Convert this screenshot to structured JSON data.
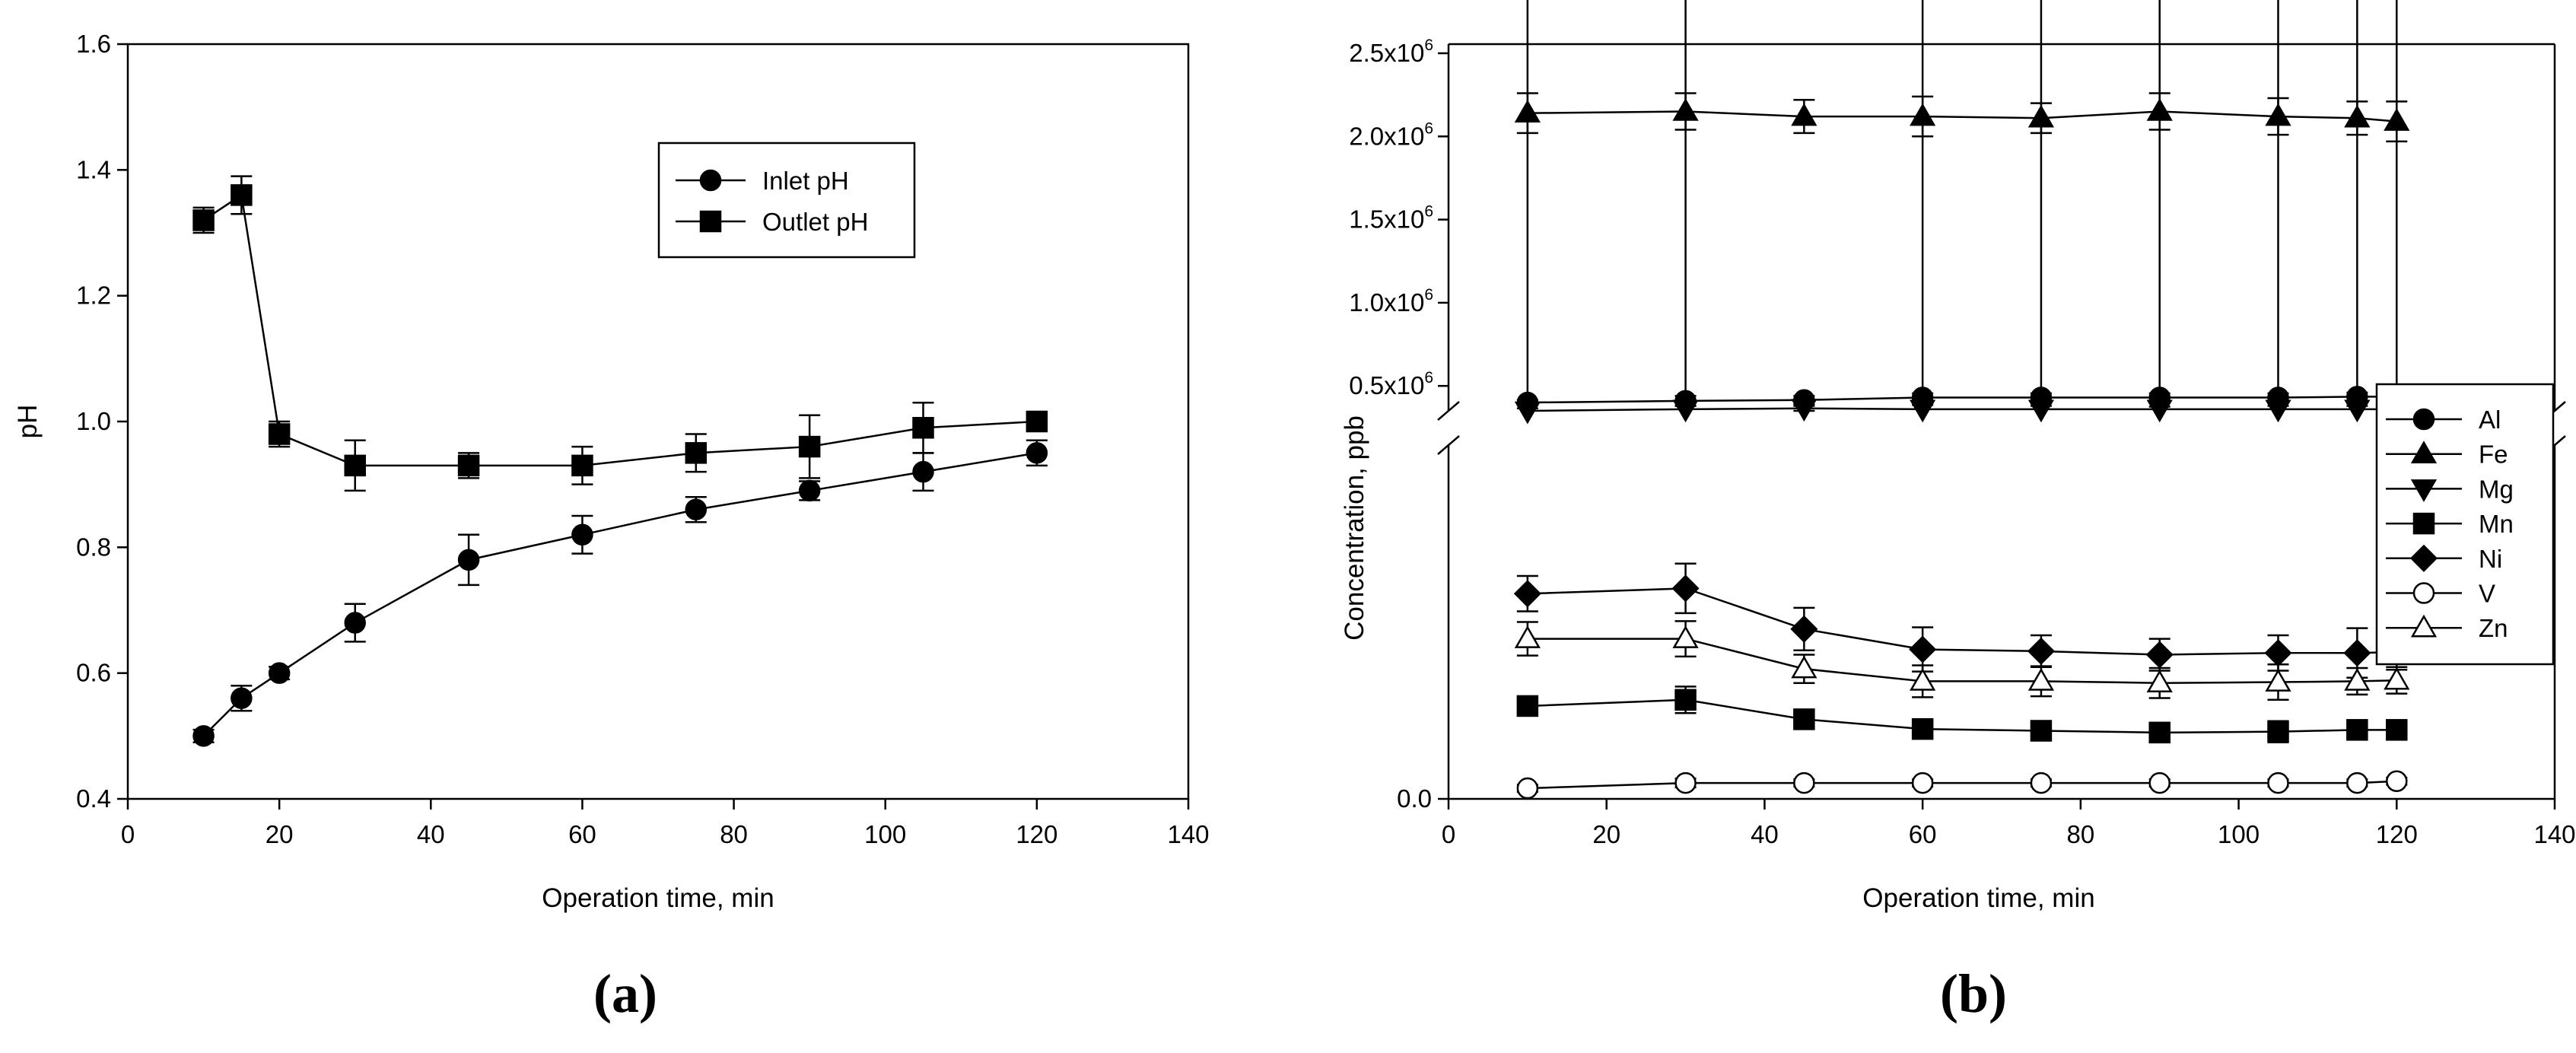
{
  "chart_data": [
    {
      "type": "line",
      "panel_label": "a",
      "title": "",
      "xlabel": "Operation time, min",
      "ylabel": "pH",
      "xlim": [
        0,
        140
      ],
      "ylim": [
        0.4,
        1.6
      ],
      "xticks": [
        "0",
        "20",
        "40",
        "60",
        "80",
        "100",
        "120",
        "140"
      ],
      "yticks": [
        "0.4",
        "0.6",
        "0.8",
        "1.0",
        "1.2",
        "1.4",
        "1.6"
      ],
      "grid": false,
      "legend_position": "top-right",
      "series": [
        {
          "name": "Inlet pH",
          "marker": "circle-filled",
          "x": [
            10,
            15,
            20,
            30,
            45,
            60,
            75,
            90,
            105,
            120
          ],
          "y": [
            0.5,
            0.56,
            0.6,
            0.68,
            0.78,
            0.82,
            0.86,
            0.89,
            0.92,
            0.95
          ],
          "err": [
            0.01,
            0.02,
            0.01,
            0.03,
            0.04,
            0.03,
            0.02,
            0.015,
            0.03,
            0.02
          ]
        },
        {
          "name": "Outlet pH",
          "marker": "square-filled",
          "x": [
            10,
            15,
            20,
            30,
            45,
            60,
            75,
            90,
            105,
            120
          ],
          "y": [
            1.32,
            1.36,
            0.98,
            0.93,
            0.93,
            0.93,
            0.95,
            0.96,
            0.99,
            1.0
          ],
          "err": [
            0.02,
            0.03,
            0.02,
            0.04,
            0.02,
            0.03,
            0.03,
            0.05,
            0.04,
            0.015
          ]
        }
      ]
    },
    {
      "type": "line",
      "panel_label": "b",
      "title": "",
      "xlabel": "Operation time, min",
      "ylabel": "Concentration, ppb",
      "xlim": [
        0,
        140
      ],
      "xticks": [
        "0",
        "20",
        "40",
        "60",
        "80",
        "100",
        "120",
        "140"
      ],
      "axis_break": true,
      "y_upper_range": [
        350000,
        2500000
      ],
      "y_lower_range": [
        0,
        40000
      ],
      "yticks_upper": [
        {
          "value": 500000,
          "mant": "0.5x10",
          "exp": "6"
        },
        {
          "value": 1000000,
          "mant": "1.0x10",
          "exp": "6"
        },
        {
          "value": 1500000,
          "mant": "1.5x10",
          "exp": "6"
        },
        {
          "value": 2000000,
          "mant": "2.0x10",
          "exp": "6"
        },
        {
          "value": 2500000,
          "mant": "2.5x10",
          "exp": "6"
        }
      ],
      "yticks_lower": [
        {
          "value": 0,
          "label": "0.0"
        }
      ],
      "grid": false,
      "legend_position": "right",
      "series": [
        {
          "name": "Al",
          "marker": "circle-filled",
          "x": [
            10,
            30,
            45,
            60,
            75,
            90,
            105,
            115,
            120
          ],
          "y": [
            400000,
            410000,
            415000,
            430000,
            430000,
            430000,
            430000,
            435000,
            435000
          ],
          "err": [
            15000,
            30000,
            25000,
            25000,
            25000,
            25000,
            25000,
            25000,
            35000
          ]
        },
        {
          "name": "Fe",
          "marker": "triangle-up-filled",
          "x": [
            10,
            30,
            45,
            60,
            75,
            90,
            105,
            115,
            120
          ],
          "y": [
            2140000,
            2150000,
            2120000,
            2120000,
            2110000,
            2150000,
            2120000,
            2110000,
            2090000
          ],
          "err": [
            120000,
            110000,
            100000,
            120000,
            90000,
            110000,
            110000,
            100000,
            120000
          ]
        },
        {
          "name": "Mg",
          "marker": "triangle-down-filled",
          "x": [
            10,
            30,
            45,
            60,
            75,
            90,
            105,
            115,
            120
          ],
          "y": [
            350000,
            360000,
            365000,
            360000,
            360000,
            360000,
            360000,
            360000,
            360000
          ],
          "err": [
            15000,
            20000,
            15000,
            25000,
            20000,
            15000,
            20000,
            20000,
            25000
          ]
        },
        {
          "name": "Mn",
          "marker": "square-filled",
          "x": [
            10,
            30,
            45,
            60,
            75,
            90,
            105,
            115,
            120
          ],
          "y": [
            10500,
            11200,
            9000,
            7900,
            7700,
            7500,
            7600,
            7800,
            7800
          ],
          "err": [
            900,
            1500,
            900,
            900,
            1000,
            900,
            1200,
            900,
            900
          ]
        },
        {
          "name": "Ni",
          "marker": "diamond-filled",
          "x": [
            10,
            30,
            45,
            60,
            75,
            90,
            105,
            115,
            120
          ],
          "y": [
            23200,
            23800,
            19200,
            16900,
            16700,
            16300,
            16500,
            16500,
            16600
          ],
          "err": [
            2000,
            2800,
            2400,
            2500,
            1800,
            1800,
            2000,
            2800,
            2000
          ]
        },
        {
          "name": "V",
          "marker": "circle-open",
          "x": [
            10,
            30,
            45,
            60,
            75,
            90,
            105,
            115,
            120
          ],
          "y": [
            1200,
            1800,
            1800,
            1800,
            1800,
            1800,
            1800,
            1800,
            2000
          ],
          "err": [
            400,
            500,
            400,
            400,
            400,
            400,
            400,
            400,
            400
          ]
        },
        {
          "name": "Zn",
          "marker": "triangle-up-open",
          "x": [
            10,
            30,
            45,
            60,
            75,
            90,
            105,
            115,
            120
          ],
          "y": [
            18100,
            18100,
            14700,
            13300,
            13300,
            13100,
            13200,
            13300,
            13400
          ],
          "err": [
            1900,
            2000,
            1600,
            1800,
            1700,
            1700,
            2000,
            1500,
            1500
          ]
        }
      ]
    }
  ],
  "panel_labels": [
    "(a)",
    "(b)"
  ]
}
